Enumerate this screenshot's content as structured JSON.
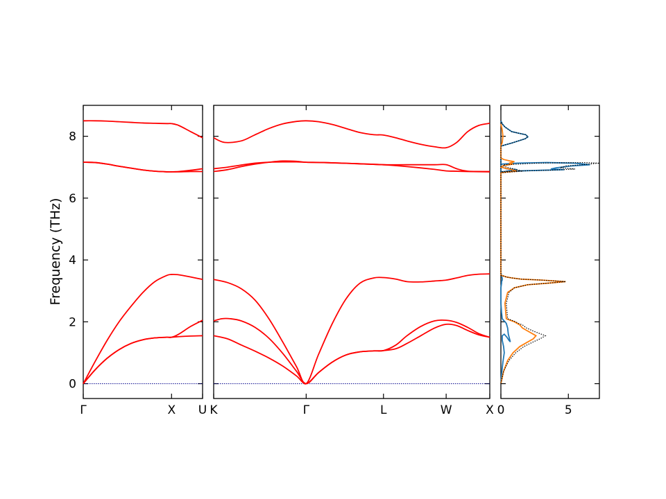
{
  "chart_data": {
    "type": "line",
    "ylabel": "Frequency (THz)",
    "ylim": [
      -0.48,
      9.0
    ],
    "yticks": [
      0,
      2,
      4,
      6,
      8
    ],
    "band_color": "#ff0000",
    "zero_line_color": "#00008b",
    "panels": [
      {
        "name": "gamma-x-u",
        "xlim": [
          0,
          1.0
        ],
        "ticks": [
          {
            "pos": 0,
            "label": "Γ"
          },
          {
            "pos": 0.74,
            "label": "X"
          },
          {
            "pos": 1.0,
            "label": "U"
          }
        ],
        "series": [
          {
            "x": [
              0,
              0.1,
              0.2,
              0.3,
              0.4,
              0.5,
              0.6,
              0.7,
              0.74,
              0.8,
              0.9,
              1.0
            ],
            "y": [
              8.5,
              8.5,
              8.49,
              8.47,
              8.45,
              8.43,
              8.42,
              8.41,
              8.41,
              8.35,
              8.15,
              7.95
            ]
          },
          {
            "x": [
              0,
              0.1,
              0.2,
              0.3,
              0.4,
              0.5,
              0.6,
              0.7,
              0.74,
              0.8,
              0.9,
              1.0
            ],
            "y": [
              7.16,
              7.15,
              7.1,
              7.03,
              6.97,
              6.91,
              6.87,
              6.85,
              6.85,
              6.86,
              6.9,
              6.95
            ]
          },
          {
            "x": [
              0,
              0.1,
              0.2,
              0.3,
              0.4,
              0.5,
              0.6,
              0.7,
              0.74,
              0.8,
              0.9,
              1.0
            ],
            "y": [
              7.16,
              7.15,
              7.1,
              7.03,
              6.97,
              6.91,
              6.87,
              6.85,
              6.85,
              6.85,
              6.86,
              6.86
            ]
          },
          {
            "x": [
              0,
              0.1,
              0.2,
              0.3,
              0.4,
              0.5,
              0.6,
              0.7,
              0.74,
              0.8,
              0.9,
              1.0
            ],
            "y": [
              0,
              0.72,
              1.4,
              2.0,
              2.5,
              2.95,
              3.3,
              3.5,
              3.53,
              3.52,
              3.45,
              3.37
            ]
          },
          {
            "x": [
              0,
              0.1,
              0.2,
              0.3,
              0.4,
              0.5,
              0.6,
              0.7,
              0.74,
              0.8,
              0.9,
              1.0
            ],
            "y": [
              0,
              0.45,
              0.82,
              1.1,
              1.3,
              1.42,
              1.48,
              1.5,
              1.5,
              1.6,
              1.85,
              2.05
            ]
          },
          {
            "x": [
              0,
              0.1,
              0.2,
              0.3,
              0.4,
              0.5,
              0.6,
              0.7,
              0.74,
              0.8,
              0.9,
              1.0
            ],
            "y": [
              0,
              0.45,
              0.82,
              1.1,
              1.3,
              1.42,
              1.48,
              1.5,
              1.5,
              1.52,
              1.54,
              1.55
            ]
          }
        ]
      },
      {
        "name": "k-gamma-l-w-x",
        "xlim": [
          0,
          1.0
        ],
        "ticks": [
          {
            "pos": 0,
            "label": "K"
          },
          {
            "pos": 0.335,
            "label": "Γ"
          },
          {
            "pos": 0.615,
            "label": "L"
          },
          {
            "pos": 0.842,
            "label": "W"
          },
          {
            "pos": 1.0,
            "label": "X"
          }
        ],
        "series": [
          {
            "x": [
              0,
              0.04,
              0.1,
              0.15,
              0.2,
              0.25,
              0.3,
              0.335,
              0.38,
              0.43,
              0.48,
              0.53,
              0.58,
              0.615,
              0.66,
              0.7,
              0.75,
              0.8,
              0.842,
              0.88,
              0.92,
              0.96,
              1.0
            ],
            "y": [
              7.95,
              7.8,
              7.85,
              8.05,
              8.25,
              8.4,
              8.48,
              8.5,
              8.47,
              8.38,
              8.25,
              8.12,
              8.05,
              8.04,
              7.95,
              7.85,
              7.74,
              7.66,
              7.63,
              7.8,
              8.15,
              8.35,
              8.42
            ]
          },
          {
            "x": [
              0,
              0.05,
              0.1,
              0.15,
              0.2,
              0.25,
              0.3,
              0.335,
              0.4,
              0.5,
              0.615,
              0.7,
              0.8,
              0.842,
              0.88,
              0.92,
              1.0
            ],
            "y": [
              6.95,
              7.0,
              7.07,
              7.13,
              7.16,
              7.17,
              7.17,
              7.16,
              7.15,
              7.12,
              7.08,
              7.08,
              7.08,
              7.08,
              6.95,
              6.87,
              6.86
            ]
          },
          {
            "x": [
              0,
              0.05,
              0.1,
              0.15,
              0.2,
              0.25,
              0.3,
              0.335,
              0.4,
              0.5,
              0.615,
              0.7,
              0.8,
              0.842,
              0.88,
              0.92,
              1.0
            ],
            "y": [
              6.86,
              6.92,
              7.02,
              7.1,
              7.16,
              7.2,
              7.19,
              7.16,
              7.15,
              7.12,
              7.08,
              7.02,
              6.93,
              6.88,
              6.87,
              6.86,
              6.85
            ]
          },
          {
            "x": [
              0,
              0.05,
              0.1,
              0.15,
              0.2,
              0.25,
              0.3,
              0.335,
              0.38,
              0.43,
              0.48,
              0.53,
              0.58,
              0.615,
              0.66,
              0.7,
              0.75,
              0.8,
              0.842,
              0.88,
              0.92,
              0.96,
              1.0
            ],
            "y": [
              3.37,
              3.27,
              3.07,
              2.7,
              2.1,
              1.35,
              0.55,
              0,
              0.95,
              1.95,
              2.75,
              3.25,
              3.42,
              3.43,
              3.38,
              3.3,
              3.29,
              3.32,
              3.35,
              3.42,
              3.5,
              3.54,
              3.55
            ]
          },
          {
            "x": [
              0,
              0.03,
              0.06,
              0.1,
              0.15,
              0.2,
              0.25,
              0.3,
              0.335,
              0.38,
              0.43,
              0.48,
              0.53,
              0.58,
              0.615,
              0.66,
              0.7,
              0.75,
              0.8,
              0.842,
              0.88,
              0.92,
              0.96,
              1.0
            ],
            "y": [
              2.03,
              2.1,
              2.1,
              2.03,
              1.82,
              1.47,
              0.98,
              0.4,
              0,
              0.36,
              0.7,
              0.93,
              1.03,
              1.06,
              1.07,
              1.25,
              1.55,
              1.85,
              2.03,
              2.05,
              1.98,
              1.82,
              1.62,
              1.5
            ]
          },
          {
            "x": [
              0,
              0.05,
              0.1,
              0.15,
              0.2,
              0.25,
              0.3,
              0.335,
              0.38,
              0.43,
              0.48,
              0.53,
              0.58,
              0.615,
              0.66,
              0.7,
              0.75,
              0.8,
              0.842,
              0.88,
              0.92,
              0.96,
              1.0
            ],
            "y": [
              1.55,
              1.45,
              1.25,
              1.05,
              0.83,
              0.57,
              0.25,
              0,
              0.36,
              0.7,
              0.93,
              1.03,
              1.06,
              1.07,
              1.13,
              1.3,
              1.55,
              1.8,
              1.92,
              1.88,
              1.72,
              1.58,
              1.5
            ]
          }
        ]
      }
    ],
    "dos": {
      "xlim": [
        0,
        7.3
      ],
      "xticks": [
        0,
        5
      ],
      "series": [
        {
          "color": "#1f77b4",
          "style": "solid",
          "x": [
            0,
            0.05,
            0.15,
            0.25,
            0.2,
            0.1,
            0.1,
            0.25,
            0.45,
            0.6,
            0.7,
            0.55,
            0.5,
            0.4,
            0.2,
            0.1,
            0.05,
            0,
            0,
            0.05,
            0.05,
            0.1,
            0.1,
            0.05,
            0,
            0,
            0.1,
            0.4,
            1.2,
            0.4,
            0.1,
            0,
            0,
            0.1,
            1.2,
            2.2,
            3.4,
            5.5,
            6.6,
            5.2,
            4.1,
            3.7,
            4.7,
            3.0,
            0.6,
            0,
            0,
            0.3,
            0.8,
            1.3,
            1.8,
            2.0,
            1.85,
            1.3,
            0.8,
            0.3,
            0.1,
            0.05,
            0
          ],
          "y": [
            0,
            0.3,
            0.7,
            1.0,
            1.2,
            1.4,
            1.55,
            1.6,
            1.5,
            1.4,
            1.35,
            1.6,
            1.8,
            1.95,
            2.05,
            2.1,
            2.3,
            2.6,
            3.1,
            3.25,
            3.3,
            3.35,
            3.4,
            3.5,
            3.6,
            6.82,
            6.84,
            6.87,
            6.92,
            6.95,
            7.0,
            7.05,
            7.08,
            7.1,
            7.13,
            7.14,
            7.15,
            7.13,
            7.08,
            7.04,
            6.98,
            6.94,
            6.92,
            6.9,
            6.87,
            6.85,
            7.68,
            7.72,
            7.78,
            7.85,
            7.92,
            7.98,
            8.05,
            8.1,
            8.15,
            8.3,
            8.4,
            8.45,
            8.5
          ]
        },
        {
          "color": "#ff7f0e",
          "style": "solid",
          "x": [
            0,
            0.2,
            0.5,
            0.9,
            1.4,
            2.0,
            2.4,
            2.6,
            2.4,
            2.0,
            1.6,
            1.4,
            1.2,
            1.0,
            0.7,
            0.4,
            0.3,
            0.5,
            1.0,
            2.0,
            3.5,
            4.8,
            3.0,
            1.5,
            0.8,
            0.4,
            0.2,
            0,
            0,
            0.4,
            1.2,
            0.8,
            0.5,
            0.2,
            0,
            0,
            0.2,
            0.9,
            0.6,
            0.8,
            1.0,
            0.7,
            0.2,
            0,
            0,
            0.1,
            0.15,
            0.1,
            0
          ],
          "y": [
            0,
            0.4,
            0.75,
            1.0,
            1.2,
            1.35,
            1.45,
            1.55,
            1.6,
            1.7,
            1.8,
            1.9,
            1.95,
            2.0,
            2.05,
            2.1,
            2.6,
            2.95,
            3.1,
            3.2,
            3.25,
            3.3,
            3.35,
            3.38,
            3.42,
            3.45,
            3.48,
            3.5,
            6.82,
            6.84,
            6.87,
            6.92,
            6.95,
            6.98,
            7.0,
            7.02,
            7.05,
            7.1,
            7.13,
            7.15,
            7.18,
            7.2,
            7.25,
            7.3,
            7.68,
            7.8,
            8.0,
            8.2,
            8.4
          ]
        },
        {
          "color": "#000000",
          "style": "dotted",
          "x": [
            0,
            0.2,
            0.6,
            1.1,
            1.7,
            2.4,
            2.9,
            3.3,
            3.0,
            2.4,
            1.9,
            1.6,
            1.3,
            1.1,
            0.8,
            0.5,
            0.4,
            0.6,
            1.0,
            2.0,
            3.5,
            4.8,
            3.0,
            1.5,
            0.8,
            0.4,
            0.2,
            0,
            0,
            0.5,
            1.6,
            1.2,
            0.9,
            0.4,
            0.2,
            0.2,
            1.3,
            2.6,
            3.9,
            6.2,
            7.3,
            6.0,
            4.8,
            4.4,
            5.5,
            3.5,
            0.7,
            0,
            0,
            0.3,
            0.8,
            1.3,
            1.8,
            2.0,
            1.85,
            1.3,
            0.8,
            0.3,
            0.1,
            0.05,
            0
          ],
          "y": [
            0,
            0.4,
            0.75,
            1.0,
            1.2,
            1.35,
            1.45,
            1.55,
            1.6,
            1.7,
            1.8,
            1.9,
            1.95,
            2.0,
            2.05,
            2.1,
            2.6,
            2.95,
            3.1,
            3.2,
            3.25,
            3.3,
            3.35,
            3.38,
            3.42,
            3.45,
            3.48,
            3.5,
            6.82,
            6.84,
            6.87,
            6.92,
            6.95,
            7.0,
            7.05,
            7.08,
            7.1,
            7.13,
            7.14,
            7.15,
            7.13,
            7.08,
            7.04,
            6.98,
            6.94,
            6.9,
            6.87,
            6.85,
            7.68,
            7.72,
            7.78,
            7.85,
            7.92,
            7.98,
            8.05,
            8.1,
            8.15,
            8.3,
            8.4,
            8.45,
            8.5
          ]
        }
      ]
    }
  }
}
